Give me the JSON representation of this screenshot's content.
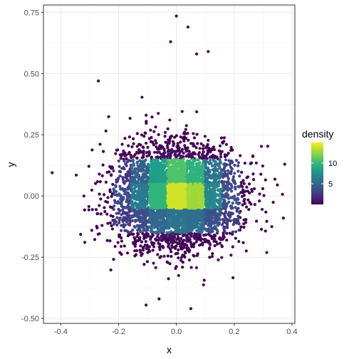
{
  "chart_data": {
    "type": "scatter",
    "title": "",
    "xlabel": "x",
    "ylabel": "y",
    "xlim": [
      -0.46,
      0.41
    ],
    "ylim": [
      -0.52,
      0.78
    ],
    "x_ticks": [
      -0.4,
      -0.2,
      0.0,
      0.2,
      0.4
    ],
    "x_tick_labels": [
      "-0.4",
      "-0.2",
      "0.0",
      "0.2",
      "0.4"
    ],
    "y_ticks": [
      -0.5,
      -0.25,
      0.0,
      0.25,
      0.5,
      0.75
    ],
    "y_tick_labels": [
      "-0.50",
      "-0.25",
      "0.00",
      "0.25",
      "0.50",
      "0.75"
    ],
    "grid": true,
    "theme": "bw",
    "color_scale": {
      "name": "viridis",
      "legend_title": "density",
      "range": [
        0,
        15
      ],
      "ticks": [
        5,
        10
      ],
      "tick_labels": [
        "5",
        "10"
      ],
      "colors": [
        "#440154",
        "#482878",
        "#3e4a89",
        "#31688e",
        "#26828e",
        "#1f9e89",
        "#35b779",
        "#6ece58",
        "#b5de2b",
        "#fde725"
      ]
    },
    "distribution": {
      "x_mean": 0.0,
      "x_sd": 0.1,
      "y_mean": 0.0,
      "y_sd": 0.1,
      "n_points": 5000,
      "bin_width_x": 0.0625,
      "bin_width_y": 0.1
    },
    "density_grid": {
      "x_centers": [
        -0.1875,
        -0.125,
        -0.0625,
        0.0,
        0.0625,
        0.125,
        0.1875
      ],
      "y_centers": [
        -0.1,
        0.0,
        0.1
      ],
      "values": [
        [
          2.5,
          3.5,
          5.0,
          5.8,
          5.4,
          3.8,
          2.6
        ],
        [
          3.4,
          6.2,
          9.8,
          14.0,
          12.8,
          7.0,
          3.6
        ],
        [
          2.4,
          4.6,
          8.4,
          10.8,
          9.6,
          5.8,
          3.0
        ]
      ]
    },
    "outliers": [
      [
        0.0,
        0.735
      ],
      [
        -0.43,
        0.095
      ],
      [
        -0.32,
        0.0
      ],
      [
        0.37,
        -0.09
      ],
      [
        0.33,
        -0.125
      ],
      [
        0.375,
        0.13
      ],
      [
        0.11,
        0.59
      ],
      [
        -0.04,
        0.12
      ],
      [
        0.02,
        0.345
      ],
      [
        -0.27,
        0.47
      ],
      [
        0.05,
        -0.46
      ],
      [
        -0.105,
        -0.445
      ],
      [
        -0.06,
        -0.42
      ],
      [
        0.04,
        0.69
      ],
      [
        -0.02,
        0.63
      ],
      [
        0.07,
        0.58
      ]
    ]
  }
}
